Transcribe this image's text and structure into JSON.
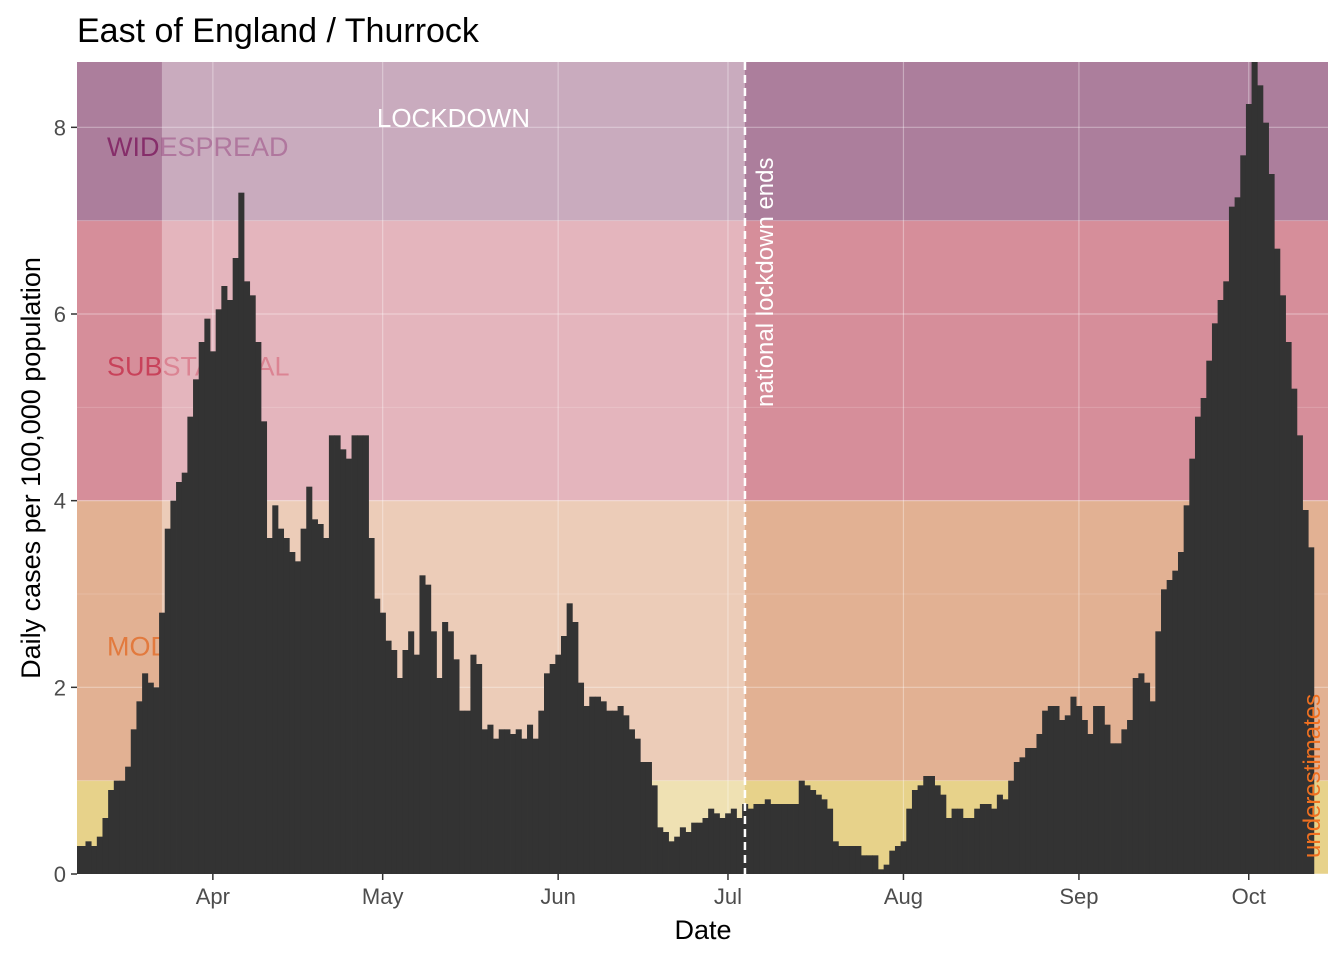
{
  "chart_data": {
    "type": "bar",
    "title": "East of England / Thurrock",
    "xlabel": "Date",
    "ylabel": "Daily cases per 100,000 population",
    "ylim": [
      0,
      8.7
    ],
    "y_ticks": [
      0,
      2,
      4,
      6,
      8
    ],
    "x_range": [
      "2020-03-08",
      "2020-10-15"
    ],
    "x_ticks": [
      {
        "date": "2020-04-01",
        "label": "Apr"
      },
      {
        "date": "2020-05-01",
        "label": "May"
      },
      {
        "date": "2020-06-01",
        "label": "Jun"
      },
      {
        "date": "2020-07-01",
        "label": "Jul"
      },
      {
        "date": "2020-08-01",
        "label": "Aug"
      },
      {
        "date": "2020-09-01",
        "label": "Sep"
      },
      {
        "date": "2020-10-01",
        "label": "Oct"
      }
    ],
    "grid": true,
    "bar_color": "#333333",
    "start_date": "2020-03-08",
    "values": [
      0.3,
      0.3,
      0.35,
      0.3,
      0.4,
      0.6,
      0.9,
      1.0,
      1.0,
      1.15,
      1.55,
      1.85,
      2.15,
      2.05,
      2.0,
      2.8,
      3.7,
      4.0,
      4.2,
      4.3,
      4.9,
      5.3,
      5.7,
      5.95,
      5.6,
      6.05,
      6.3,
      6.15,
      6.6,
      7.3,
      6.35,
      6.2,
      5.7,
      4.85,
      3.6,
      3.95,
      3.7,
      3.6,
      3.45,
      3.35,
      3.7,
      4.15,
      3.8,
      3.75,
      3.6,
      4.7,
      4.7,
      4.55,
      4.45,
      4.7,
      4.7,
      4.7,
      3.6,
      2.95,
      2.8,
      2.5,
      2.4,
      2.1,
      2.4,
      2.6,
      2.35,
      3.2,
      3.1,
      2.6,
      2.1,
      2.7,
      2.6,
      2.3,
      1.75,
      1.75,
      2.35,
      2.25,
      1.55,
      1.6,
      1.45,
      1.55,
      1.55,
      1.5,
      1.55,
      1.45,
      1.6,
      1.45,
      1.75,
      2.15,
      2.25,
      2.35,
      2.55,
      2.9,
      2.7,
      2.05,
      1.8,
      1.9,
      1.9,
      1.85,
      1.75,
      1.75,
      1.8,
      1.7,
      1.55,
      1.45,
      1.2,
      1.2,
      0.95,
      0.5,
      0.45,
      0.35,
      0.4,
      0.5,
      0.45,
      0.55,
      0.55,
      0.6,
      0.7,
      0.65,
      0.6,
      0.65,
      0.7,
      0.6,
      0.75,
      0.7,
      0.75,
      0.75,
      0.8,
      0.75,
      0.75,
      0.75,
      0.75,
      0.75,
      1.0,
      0.95,
      0.9,
      0.85,
      0.8,
      0.7,
      0.35,
      0.3,
      0.3,
      0.3,
      0.3,
      0.2,
      0.2,
      0.2,
      0.05,
      0.1,
      0.25,
      0.3,
      0.35,
      0.7,
      0.9,
      0.95,
      1.05,
      1.05,
      0.95,
      0.85,
      0.6,
      0.7,
      0.7,
      0.6,
      0.6,
      0.7,
      0.75,
      0.75,
      0.7,
      0.85,
      0.8,
      1.0,
      1.2,
      1.25,
      1.35,
      1.35,
      1.5,
      1.75,
      1.8,
      1.8,
      1.65,
      1.7,
      1.9,
      1.8,
      1.65,
      1.5,
      1.8,
      1.8,
      1.6,
      1.4,
      1.4,
      1.55,
      1.65,
      2.1,
      2.15,
      2.05,
      1.85,
      2.6,
      3.05,
      3.15,
      3.25,
      3.45,
      3.95,
      4.45,
      4.9,
      5.1,
      5.5,
      5.9,
      6.15,
      6.35,
      7.15,
      7.25,
      7.7,
      8.25,
      8.7,
      8.45,
      8.05,
      7.5,
      6.7,
      6.2,
      5.7,
      5.2,
      4.7,
      3.9,
      3.5
    ]
  },
  "thresholds": [
    {
      "label": "WIDESPREAD",
      "from": 7,
      "to": 8.7,
      "color": "#AC7E9C",
      "label_color": "#862E6A",
      "label_y": 7.8
    },
    {
      "label": "SUBSTANTIAL",
      "from": 4,
      "to": 7,
      "color": "#D68E9A",
      "label_color": "#C8425A",
      "label_y": 5.45
    },
    {
      "label": "MODERATE",
      "from": 1,
      "to": 4,
      "color": "#E2B193",
      "label_color": "#E27A3E",
      "label_y": 2.45
    },
    {
      "label": "",
      "from": 0,
      "to": 1,
      "color": "#E7D28A",
      "label_color": "#E7D28A",
      "label_y": 0.5
    }
  ],
  "lockdown": {
    "label": "LOCKDOWN",
    "start": "2020-03-23",
    "end": "2020-07-04",
    "line_label": "national lockdown ends",
    "line_color": "#ffffff"
  },
  "underestimates": {
    "label": "underestimates",
    "color": "#F07020"
  }
}
